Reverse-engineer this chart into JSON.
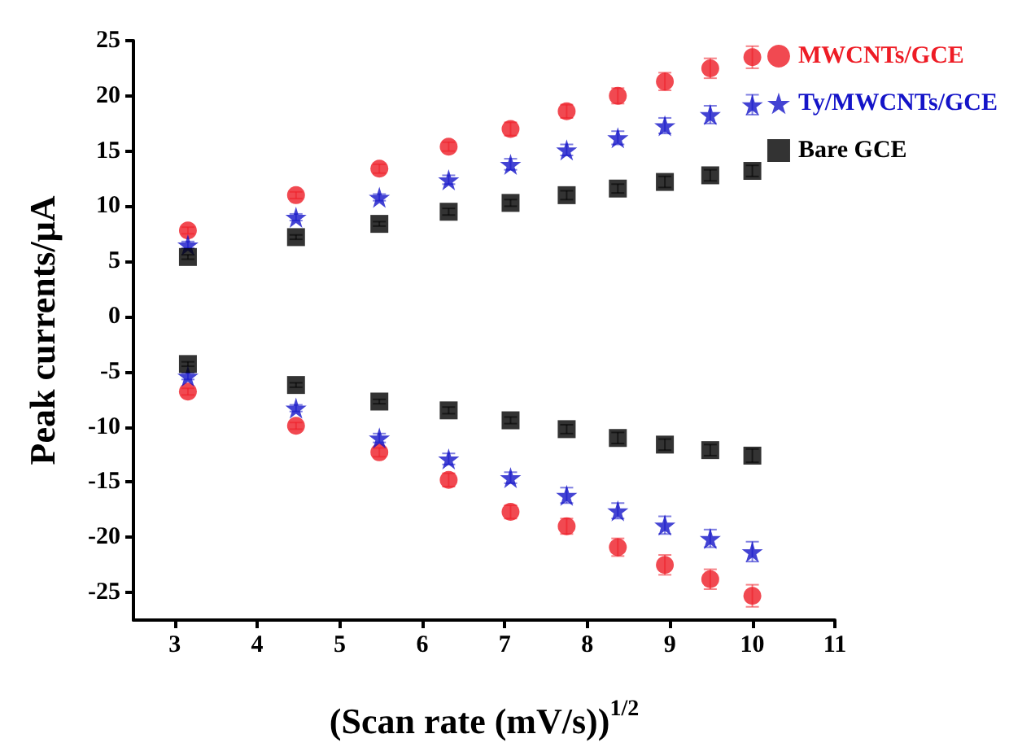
{
  "chart_data": {
    "type": "scatter",
    "xlabel": "(Scan rate (mV/s))$^{1/2}$",
    "ylabel": "Peak currents/μA",
    "xlim": [
      2.5,
      11
    ],
    "xticks": [
      3,
      4,
      5,
      6,
      7,
      8,
      9,
      10,
      11
    ],
    "ylim": [
      -27.5,
      25
    ],
    "yticks": [
      -25,
      -20,
      -15,
      -10,
      -5,
      0,
      5,
      10,
      15,
      20,
      25
    ],
    "grid": false,
    "legend": "top right",
    "series": [
      {
        "name": "MWCNTs/GCE",
        "color": "#ee1c25",
        "marker": "circle",
        "x": [
          3.16,
          4.47,
          5.48,
          6.32,
          7.07,
          7.75,
          8.37,
          8.94,
          9.49,
          10,
          3.16,
          4.47,
          5.48,
          6.32,
          7.07,
          7.75,
          8.37,
          8.94,
          9.49,
          10
        ],
        "values": [
          7.8,
          11.0,
          13.4,
          15.4,
          17.0,
          18.6,
          20.0,
          21.3,
          22.5,
          23.5,
          -6.8,
          -9.9,
          -12.3,
          -14.8,
          -17.7,
          -19.0,
          -20.9,
          -22.5,
          -23.8,
          -25.3
        ],
        "errors": [
          0.3,
          0.3,
          0.4,
          0.4,
          0.6,
          0.6,
          0.7,
          0.8,
          0.9,
          1.0,
          0.3,
          0.3,
          0.4,
          0.6,
          0.6,
          0.7,
          0.8,
          0.9,
          0.9,
          1.0
        ]
      },
      {
        "name": "Ty/MWCNTs/GCE",
        "color": "#1414c8",
        "marker": "star",
        "x": [
          3.16,
          4.47,
          5.48,
          6.32,
          7.07,
          7.75,
          8.37,
          8.94,
          9.49,
          10,
          3.16,
          4.47,
          5.48,
          6.32,
          7.07,
          7.75,
          8.37,
          8.94,
          9.49,
          10
        ],
        "values": [
          6.5,
          9.0,
          10.8,
          12.4,
          13.8,
          15.1,
          16.2,
          17.3,
          18.3,
          19.2,
          -5.4,
          -8.3,
          -11.0,
          -12.9,
          -14.6,
          -16.2,
          -17.6,
          -18.9,
          -20.1,
          -21.3
        ],
        "errors": [
          0.3,
          0.3,
          0.3,
          0.4,
          0.5,
          0.5,
          0.6,
          0.7,
          0.8,
          0.9,
          0.3,
          0.3,
          0.4,
          0.5,
          0.5,
          0.7,
          0.7,
          0.8,
          0.8,
          0.9
        ]
      },
      {
        "name": "Bare GCE",
        "color": "#000000",
        "marker": "square",
        "x": [
          3.16,
          4.47,
          5.48,
          6.32,
          7.07,
          7.75,
          8.37,
          8.94,
          9.49,
          10,
          3.16,
          4.47,
          5.48,
          6.32,
          7.07,
          7.75,
          8.37,
          8.94,
          9.49,
          10
        ],
        "values": [
          5.4,
          7.2,
          8.4,
          9.5,
          10.3,
          11.0,
          11.6,
          12.2,
          12.8,
          13.2,
          -4.3,
          -6.2,
          -7.7,
          -8.5,
          -9.4,
          -10.2,
          -11.0,
          -11.6,
          -12.1,
          -12.6
        ],
        "errors": [
          0.2,
          0.2,
          0.2,
          0.3,
          0.3,
          0.4,
          0.4,
          0.5,
          0.5,
          0.5,
          0.2,
          0.2,
          0.2,
          0.3,
          0.3,
          0.4,
          0.5,
          0.5,
          0.5,
          0.6
        ]
      }
    ]
  }
}
